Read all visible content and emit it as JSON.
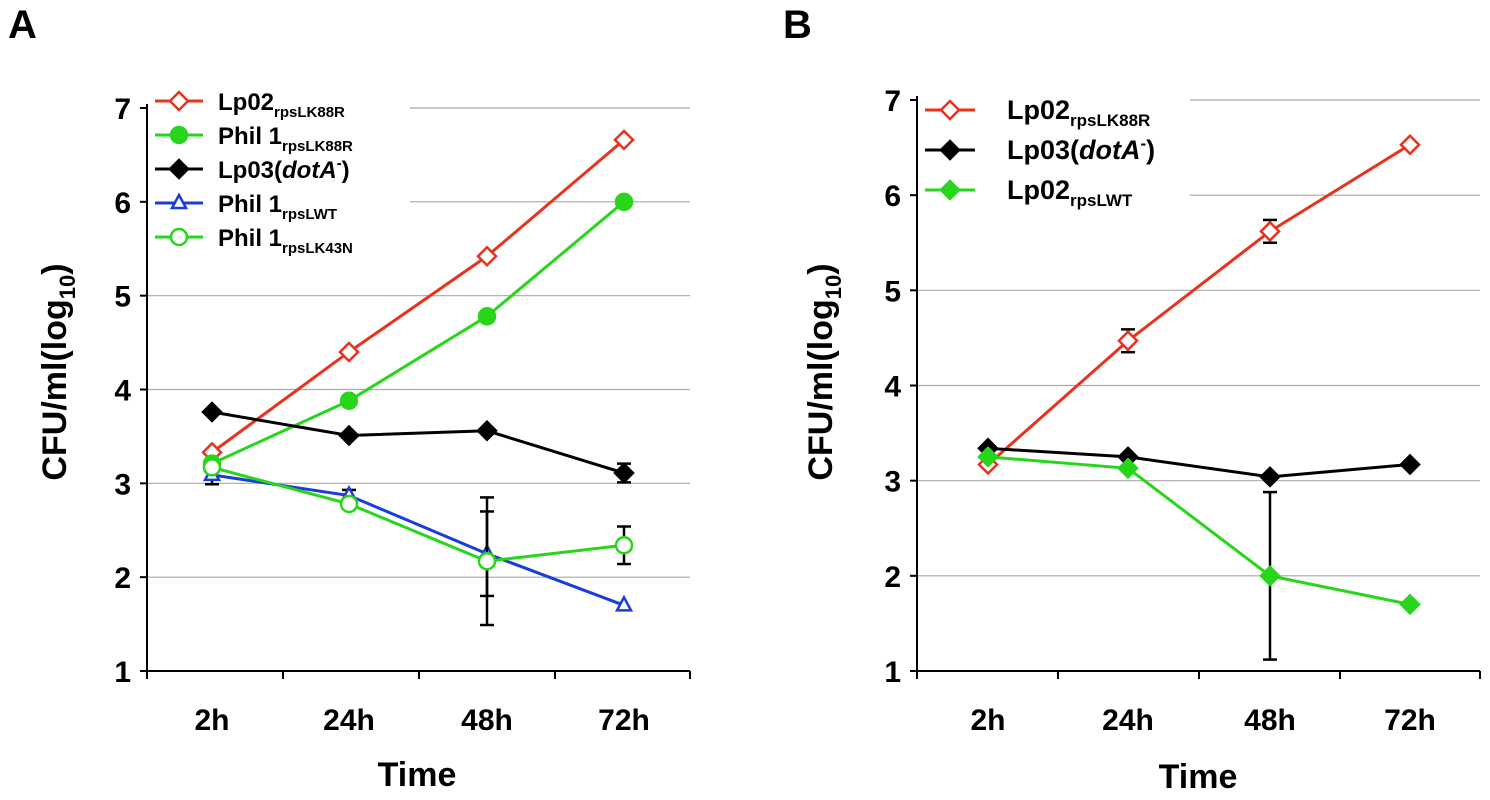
{
  "panels": [
    {
      "letter": "A",
      "chart_data": {
        "type": "line",
        "categories": [
          "2h",
          "24h",
          "48h",
          "72h"
        ],
        "xlabel": "Time",
        "ylabel": "CFU/ml(log10)",
        "ylim": [
          1,
          7
        ],
        "yticks": [
          "1",
          "2",
          "3",
          "4",
          "5",
          "6",
          "7"
        ],
        "grid": true,
        "legend_position": "top-left",
        "series": [
          {
            "name": "Lp02",
            "sub": "rpsLK88R",
            "color": "#e8321e",
            "marker": "diamond-open",
            "values": [
              3.33,
              4.4,
              5.42,
              6.66
            ],
            "errors": [
              0,
              0,
              0,
              0
            ]
          },
          {
            "name": "Phil 1",
            "sub": "rpsLK88R",
            "color": "#27d61a",
            "marker": "circle-filled",
            "values": [
              3.21,
              3.88,
              4.78,
              6.0
            ],
            "errors": [
              0,
              0,
              0,
              0
            ]
          },
          {
            "name": "Lp03(dotA-)",
            "color": "#000000",
            "marker": "diamond-filled",
            "values": [
              3.76,
              3.51,
              3.56,
              3.11
            ],
            "errors": [
              0,
              0,
              0,
              0.1
            ]
          },
          {
            "name": "Phil 1",
            "sub": "rpsLWT",
            "color": "#1a3cd9",
            "marker": "triangle-open",
            "values": [
              3.09,
              2.87,
              2.25,
              1.7
            ],
            "errors": [
              0.1,
              0.06,
              0.45,
              0
            ]
          },
          {
            "name": "Phil 1",
            "sub": "rpsLK43N",
            "color": "#27d61a",
            "marker": "circle-open",
            "values": [
              3.17,
              2.78,
              2.17,
              2.34
            ],
            "errors": [
              0,
              0,
              0.68,
              0.2
            ]
          }
        ]
      }
    },
    {
      "letter": "B",
      "chart_data": {
        "type": "line",
        "categories": [
          "2h",
          "24h",
          "48h",
          "72h"
        ],
        "xlabel": "Time",
        "ylabel": "CFU/ml(log10)",
        "ylim": [
          1,
          7
        ],
        "yticks": [
          "1",
          "2",
          "3",
          "4",
          "5",
          "6",
          "7"
        ],
        "grid": true,
        "legend_position": "top-left",
        "series": [
          {
            "name": "Lp02",
            "sub": "rpsLK88R",
            "color": "#e8321e",
            "marker": "diamond-open",
            "values": [
              3.17,
              4.47,
              5.62,
              6.53
            ],
            "errors": [
              0,
              0.12,
              0.12,
              0
            ]
          },
          {
            "name": "Lp03(dotA-)",
            "color": "#000000",
            "marker": "diamond-filled",
            "values": [
              3.34,
              3.25,
              3.04,
              3.17
            ],
            "errors": [
              0,
              0,
              0,
              0
            ]
          },
          {
            "name": "Lp02",
            "sub": "rpsLWT",
            "color": "#27d61a",
            "marker": "diamond-filled",
            "values": [
              3.25,
              3.13,
              2.0,
              1.7
            ],
            "errors": [
              0,
              0,
              0.88,
              0
            ]
          }
        ]
      }
    }
  ]
}
